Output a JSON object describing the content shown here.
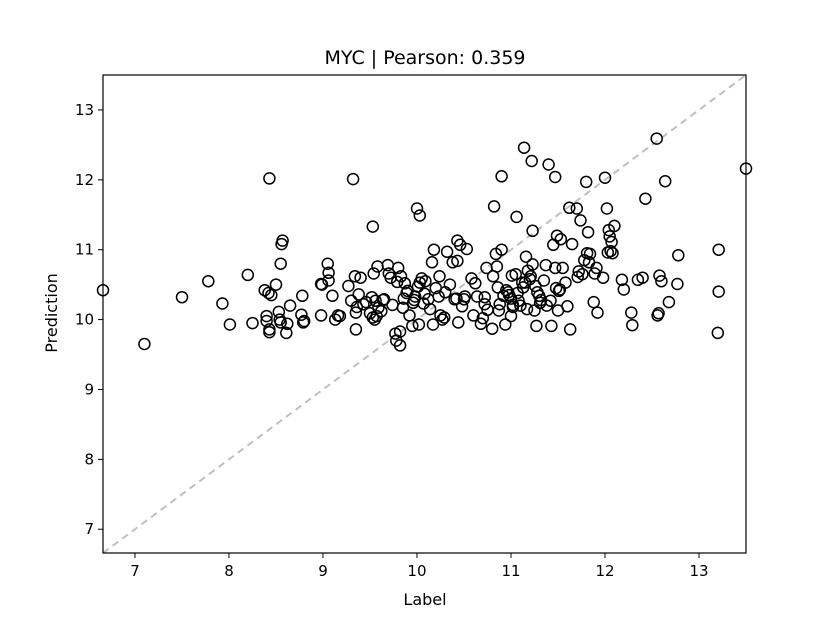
{
  "chart_data": {
    "type": "scatter",
    "title": "MYC  |  Pearson: 0.359",
    "xlabel": "Label",
    "ylabel": "Prediction",
    "xlim": [
      6.66,
      13.5
    ],
    "ylim": [
      6.66,
      13.5
    ],
    "xticks": [
      7,
      8,
      9,
      10,
      11,
      12,
      13
    ],
    "yticks": [
      7,
      8,
      9,
      10,
      11,
      12,
      13
    ],
    "grid": false,
    "reference_line": {
      "from": [
        6.66,
        6.66
      ],
      "to": [
        13.5,
        13.5
      ],
      "style": "dashed",
      "color": "#bfbfbf"
    },
    "marker_color": "#000000",
    "points": [
      [
        6.66,
        10.42
      ],
      [
        7.1,
        9.65
      ],
      [
        7.5,
        10.32
      ],
      [
        7.78,
        10.55
      ],
      [
        7.93,
        10.23
      ],
      [
        8.01,
        9.93
      ],
      [
        8.2,
        10.64
      ],
      [
        8.25,
        9.95
      ],
      [
        8.38,
        10.42
      ],
      [
        8.4,
        9.98
      ],
      [
        8.4,
        10.05
      ],
      [
        8.42,
        10.38
      ],
      [
        8.43,
        9.86
      ],
      [
        8.43,
        9.82
      ],
      [
        8.43,
        12.02
      ],
      [
        8.45,
        10.35
      ],
      [
        8.5,
        10.5
      ],
      [
        8.53,
        10.11
      ],
      [
        8.54,
        10.0
      ],
      [
        8.55,
        9.96
      ],
      [
        8.55,
        10.8
      ],
      [
        8.56,
        11.08
      ],
      [
        8.57,
        11.13
      ],
      [
        8.61,
        9.81
      ],
      [
        8.62,
        9.94
      ],
      [
        8.65,
        10.2
      ],
      [
        8.77,
        10.07
      ],
      [
        8.78,
        10.34
      ],
      [
        8.79,
        9.96
      ],
      [
        8.8,
        9.98
      ],
      [
        8.98,
        10.06
      ],
      [
        8.98,
        10.51
      ],
      [
        8.99,
        10.5
      ],
      [
        9.05,
        10.8
      ],
      [
        9.06,
        10.67
      ],
      [
        9.06,
        10.56
      ],
      [
        9.1,
        10.34
      ],
      [
        9.13,
        10.0
      ],
      [
        9.16,
        10.06
      ],
      [
        9.18,
        10.05
      ],
      [
        9.27,
        10.48
      ],
      [
        9.3,
        10.27
      ],
      [
        9.32,
        12.01
      ],
      [
        9.34,
        10.62
      ],
      [
        9.35,
        9.86
      ],
      [
        9.35,
        10.1
      ],
      [
        9.36,
        10.18
      ],
      [
        9.38,
        10.36
      ],
      [
        9.4,
        10.6
      ],
      [
        9.43,
        10.22
      ],
      [
        9.46,
        10.25
      ],
      [
        9.5,
        10.09
      ],
      [
        9.52,
        10.32
      ],
      [
        9.53,
        11.33
      ],
      [
        9.53,
        10.03
      ],
      [
        9.54,
        10.66
      ],
      [
        9.55,
        10.0
      ],
      [
        9.56,
        10.27
      ],
      [
        9.57,
        10.05
      ],
      [
        9.58,
        10.76
      ],
      [
        9.59,
        10.17
      ],
      [
        9.62,
        10.12
      ],
      [
        9.64,
        10.28
      ],
      [
        9.65,
        10.29
      ],
      [
        9.69,
        10.78
      ],
      [
        9.7,
        10.66
      ],
      [
        9.72,
        10.6
      ],
      [
        9.74,
        10.21
      ],
      [
        9.77,
        9.8
      ],
      [
        9.78,
        9.7
      ],
      [
        9.79,
        10.54
      ],
      [
        9.8,
        10.74
      ],
      [
        9.82,
        9.83
      ],
      [
        9.82,
        9.63
      ],
      [
        9.83,
        10.62
      ],
      [
        9.85,
        10.17
      ],
      [
        9.86,
        10.3
      ],
      [
        9.87,
        10.52
      ],
      [
        9.89,
        10.38
      ],
      [
        9.9,
        10.41
      ],
      [
        9.92,
        10.06
      ],
      [
        9.95,
        9.91
      ],
      [
        9.96,
        10.24
      ],
      [
        9.97,
        10.28
      ],
      [
        9.98,
        10.33
      ],
      [
        10.0,
        11.59
      ],
      [
        10.01,
        10.47
      ],
      [
        10.02,
        9.93
      ],
      [
        10.03,
        10.53
      ],
      [
        10.03,
        11.49
      ],
      [
        10.05,
        10.59
      ],
      [
        10.07,
        10.23
      ],
      [
        10.08,
        10.37
      ],
      [
        10.09,
        10.55
      ],
      [
        10.12,
        10.29
      ],
      [
        10.14,
        10.15
      ],
      [
        10.16,
        10.82
      ],
      [
        10.17,
        9.93
      ],
      [
        10.18,
        11.0
      ],
      [
        10.2,
        10.45
      ],
      [
        10.23,
        10.33
      ],
      [
        10.24,
        10.62
      ],
      [
        10.25,
        10.06
      ],
      [
        10.27,
        10.0
      ],
      [
        10.29,
        10.03
      ],
      [
        10.3,
        10.39
      ],
      [
        10.32,
        10.97
      ],
      [
        10.35,
        10.5
      ],
      [
        10.38,
        10.82
      ],
      [
        10.4,
        10.29
      ],
      [
        10.42,
        10.3
      ],
      [
        10.43,
        10.84
      ],
      [
        10.43,
        11.13
      ],
      [
        10.44,
        9.96
      ],
      [
        10.46,
        11.07
      ],
      [
        10.48,
        10.19
      ],
      [
        10.5,
        10.29
      ],
      [
        10.51,
        10.33
      ],
      [
        10.53,
        11.01
      ],
      [
        10.58,
        10.59
      ],
      [
        10.6,
        10.06
      ],
      [
        10.62,
        10.52
      ],
      [
        10.64,
        10.33
      ],
      [
        10.68,
        9.94
      ],
      [
        10.7,
        10.02
      ],
      [
        10.72,
        10.22
      ],
      [
        10.72,
        10.32
      ],
      [
        10.74,
        10.74
      ],
      [
        10.75,
        10.14
      ],
      [
        10.8,
        9.87
      ],
      [
        10.81,
        10.62
      ],
      [
        10.82,
        11.62
      ],
      [
        10.84,
        10.94
      ],
      [
        10.85,
        10.76
      ],
      [
        10.86,
        10.46
      ],
      [
        10.87,
        10.13
      ],
      [
        10.88,
        10.22
      ],
      [
        10.9,
        11.0
      ],
      [
        10.9,
        12.05
      ],
      [
        10.92,
        10.34
      ],
      [
        10.94,
        9.93
      ],
      [
        10.95,
        10.42
      ],
      [
        10.97,
        10.39
      ],
      [
        10.98,
        10.35
      ],
      [
        11.0,
        10.3
      ],
      [
        11.0,
        10.05
      ],
      [
        11.01,
        10.63
      ],
      [
        11.02,
        10.18
      ],
      [
        11.02,
        10.21
      ],
      [
        11.05,
        10.65
      ],
      [
        11.06,
        11.47
      ],
      [
        11.07,
        10.38
      ],
      [
        11.08,
        10.27
      ],
      [
        11.1,
        10.2
      ],
      [
        11.12,
        10.53
      ],
      [
        11.13,
        10.46
      ],
      [
        11.14,
        12.46
      ],
      [
        11.15,
        10.53
      ],
      [
        11.16,
        10.9
      ],
      [
        11.17,
        10.15
      ],
      [
        11.18,
        10.7
      ],
      [
        11.2,
        10.58
      ],
      [
        11.21,
        10.62
      ],
      [
        11.22,
        12.27
      ],
      [
        11.23,
        11.27
      ],
      [
        11.23,
        10.79
      ],
      [
        11.25,
        10.13
      ],
      [
        11.26,
        10.48
      ],
      [
        11.27,
        9.91
      ],
      [
        11.28,
        10.39
      ],
      [
        11.3,
        10.34
      ],
      [
        11.31,
        10.24
      ],
      [
        11.32,
        10.28
      ],
      [
        11.35,
        10.56
      ],
      [
        11.37,
        10.78
      ],
      [
        11.38,
        10.2
      ],
      [
        11.4,
        12.22
      ],
      [
        11.42,
        10.27
      ],
      [
        11.43,
        9.91
      ],
      [
        11.45,
        11.07
      ],
      [
        11.47,
        10.74
      ],
      [
        11.47,
        12.04
      ],
      [
        11.48,
        10.45
      ],
      [
        11.49,
        11.2
      ],
      [
        11.5,
        10.13
      ],
      [
        11.51,
        10.41
      ],
      [
        11.52,
        10.43
      ],
      [
        11.53,
        11.15
      ],
      [
        11.55,
        10.74
      ],
      [
        11.58,
        10.53
      ],
      [
        11.6,
        10.19
      ],
      [
        11.62,
        11.6
      ],
      [
        11.63,
        9.86
      ],
      [
        11.65,
        11.08
      ],
      [
        11.7,
        11.59
      ],
      [
        11.71,
        10.61
      ],
      [
        11.72,
        10.69
      ],
      [
        11.74,
        11.42
      ],
      [
        11.76,
        10.65
      ],
      [
        11.78,
        10.85
      ],
      [
        11.8,
        11.97
      ],
      [
        11.81,
        10.95
      ],
      [
        11.82,
        11.25
      ],
      [
        11.83,
        10.82
      ],
      [
        11.84,
        10.94
      ],
      [
        11.88,
        10.25
      ],
      [
        11.89,
        10.66
      ],
      [
        11.91,
        10.74
      ],
      [
        11.92,
        10.1
      ],
      [
        11.98,
        10.6
      ],
      [
        12.0,
        12.03
      ],
      [
        12.02,
        11.59
      ],
      [
        12.03,
        10.96
      ],
      [
        12.04,
        11.28
      ],
      [
        12.05,
        11.19
      ],
      [
        12.06,
        10.98
      ],
      [
        12.07,
        11.11
      ],
      [
        12.08,
        10.95
      ],
      [
        12.1,
        11.34
      ],
      [
        12.18,
        10.57
      ],
      [
        12.2,
        10.43
      ],
      [
        12.28,
        10.1
      ],
      [
        12.29,
        9.92
      ],
      [
        12.35,
        10.57
      ],
      [
        12.4,
        10.6
      ],
      [
        12.43,
        11.73
      ],
      [
        12.55,
        12.59
      ],
      [
        12.56,
        10.06
      ],
      [
        12.57,
        10.09
      ],
      [
        12.58,
        10.63
      ],
      [
        12.6,
        10.55
      ],
      [
        12.64,
        11.98
      ],
      [
        12.68,
        10.25
      ],
      [
        12.77,
        10.51
      ],
      [
        12.78,
        10.92
      ],
      [
        13.2,
        9.81
      ],
      [
        13.21,
        11.0
      ],
      [
        13.21,
        10.4
      ],
      [
        13.5,
        12.16
      ]
    ]
  }
}
